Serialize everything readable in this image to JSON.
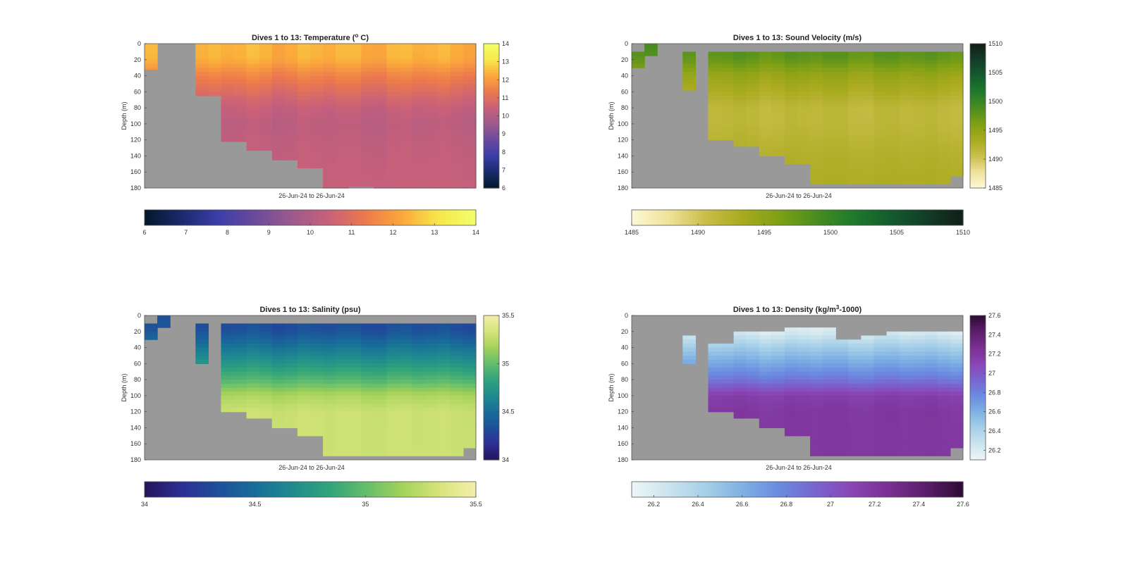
{
  "figure": {
    "background": "#ffffff",
    "nan_color": "#999999"
  },
  "chart_data": [
    {
      "type": "heatmap",
      "variable": "temperature",
      "title": "Dives 1 to 13: Temperature (",
      "title_sup": "o",
      "title_suffix": " C)",
      "xlabel": "26-Jun-24 to 26-Jun-24",
      "ylabel": "Depth (m)",
      "ylim": [
        0,
        180
      ],
      "yticks": [
        0,
        20,
        40,
        60,
        80,
        100,
        120,
        140,
        160,
        180
      ],
      "clim": [
        6,
        14
      ],
      "colorbar_ticks": [
        6,
        7,
        8,
        9,
        10,
        11,
        12,
        13,
        14
      ],
      "colorbar_tick_labels": [
        "6",
        "7",
        "8",
        "9",
        "10",
        "11",
        "12",
        "13",
        "14"
      ],
      "colormap": [
        "#03172b",
        "#1a2a6c",
        "#3b3ea8",
        "#6a4a9c",
        "#9b5a8c",
        "#c8607a",
        "#ec7a4c",
        "#fba83b",
        "#f7e84a",
        "#f2ff6a"
      ],
      "profiles": 26,
      "profile_depth_range": [
        [
          0,
          32
        ],
        [
          0,
          0
        ],
        [
          0,
          0
        ],
        [
          0,
          0
        ],
        [
          0,
          65
        ],
        [
          0,
          65
        ],
        [
          0,
          122
        ],
        [
          0,
          122
        ],
        [
          0,
          133
        ],
        [
          0,
          133
        ],
        [
          0,
          145
        ],
        [
          0,
          145
        ],
        [
          0,
          155
        ],
        [
          0,
          155
        ],
        [
          0,
          180
        ],
        [
          0,
          180
        ],
        [
          0,
          178
        ],
        [
          0,
          178
        ],
        [
          0,
          180
        ],
        [
          0,
          180
        ],
        [
          0,
          180
        ],
        [
          0,
          180
        ],
        [
          0,
          180
        ],
        [
          0,
          180
        ],
        [
          0,
          180
        ],
        [
          0,
          180
        ]
      ],
      "depth_profile": [
        [
          0,
          12.4
        ],
        [
          20,
          12.3
        ],
        [
          40,
          11.5
        ],
        [
          60,
          10.9
        ],
        [
          80,
          10.4
        ],
        [
          100,
          10.2
        ],
        [
          120,
          10.3
        ],
        [
          140,
          10.35
        ],
        [
          160,
          10.4
        ],
        [
          180,
          10.4
        ]
      ]
    },
    {
      "type": "heatmap",
      "variable": "sound_velocity",
      "title": "Dives 1 to 13: Sound Velocity (m/s)",
      "xlabel": "26-Jun-24 to 26-Jun-24",
      "ylabel": "Depth (m)",
      "ylim": [
        0,
        180
      ],
      "yticks": [
        0,
        20,
        40,
        60,
        80,
        100,
        120,
        140,
        160,
        180
      ],
      "clim": [
        1485,
        1510
      ],
      "colorbar_ticks": [
        1485,
        1490,
        1495,
        1500,
        1505,
        1510
      ],
      "colorbar_tick_labels": [
        "1485",
        "1490",
        "1495",
        "1500",
        "1505",
        "1510"
      ],
      "colormap": [
        "#fdf8d6",
        "#efe29a",
        "#c9be4a",
        "#a9aa1e",
        "#7fa015",
        "#4a8d1f",
        "#1f7a2c",
        "#145c2e",
        "#133d28",
        "#111e16"
      ],
      "profiles": 26,
      "profile_depth_range": [
        [
          10,
          30
        ],
        [
          0,
          15
        ],
        [
          0,
          0
        ],
        [
          0,
          0
        ],
        [
          10,
          58
        ],
        [
          0,
          0
        ],
        [
          10,
          120
        ],
        [
          10,
          120
        ],
        [
          10,
          128
        ],
        [
          10,
          128
        ],
        [
          10,
          140
        ],
        [
          10,
          140
        ],
        [
          10,
          150
        ],
        [
          10,
          150
        ],
        [
          10,
          175
        ],
        [
          10,
          175
        ],
        [
          10,
          175
        ],
        [
          10,
          175
        ],
        [
          10,
          175
        ],
        [
          10,
          175
        ],
        [
          10,
          175
        ],
        [
          10,
          175
        ],
        [
          10,
          175
        ],
        [
          10,
          175
        ],
        [
          10,
          175
        ],
        [
          10,
          165
        ]
      ],
      "depth_profile": [
        [
          0,
          1498.5
        ],
        [
          20,
          1497.5
        ],
        [
          40,
          1494.5
        ],
        [
          60,
          1493.0
        ],
        [
          80,
          1491.5
        ],
        [
          100,
          1491.5
        ],
        [
          120,
          1492.0
        ],
        [
          140,
          1492.5
        ],
        [
          160,
          1492.8
        ],
        [
          180,
          1493.0
        ]
      ]
    },
    {
      "type": "heatmap",
      "variable": "salinity",
      "title": "Dives 1 to 13: Salinity (psu)",
      "xlabel": "26-Jun-24 to 26-Jun-24",
      "ylabel": "Depth (m)",
      "ylim": [
        0,
        180
      ],
      "yticks": [
        0,
        20,
        40,
        60,
        80,
        100,
        120,
        140,
        160,
        180
      ],
      "clim": [
        34,
        35.5
      ],
      "colorbar_ticks": [
        34,
        34.5,
        35,
        35.5
      ],
      "colorbar_tick_labels": [
        "34",
        "34.5",
        "35",
        "35.5"
      ],
      "colormap": [
        "#24145c",
        "#2d2f94",
        "#1e4f9a",
        "#186d99",
        "#1f8a8e",
        "#31a37c",
        "#63bd6c",
        "#a4d25a",
        "#d6e47a",
        "#f5eeaa"
      ],
      "profiles": 26,
      "profile_depth_range": [
        [
          10,
          30
        ],
        [
          0,
          15
        ],
        [
          0,
          0
        ],
        [
          0,
          0
        ],
        [
          10,
          60
        ],
        [
          0,
          0
        ],
        [
          10,
          120
        ],
        [
          10,
          120
        ],
        [
          10,
          128
        ],
        [
          10,
          128
        ],
        [
          10,
          140
        ],
        [
          10,
          140
        ],
        [
          10,
          150
        ],
        [
          10,
          150
        ],
        [
          10,
          175
        ],
        [
          10,
          175
        ],
        [
          10,
          175
        ],
        [
          10,
          175
        ],
        [
          10,
          175
        ],
        [
          10,
          175
        ],
        [
          10,
          175
        ],
        [
          10,
          175
        ],
        [
          10,
          175
        ],
        [
          10,
          175
        ],
        [
          10,
          175
        ],
        [
          10,
          165
        ]
      ],
      "depth_profile": [
        [
          0,
          34.3
        ],
        [
          20,
          34.35
        ],
        [
          40,
          34.55
        ],
        [
          60,
          34.75
        ],
        [
          80,
          34.95
        ],
        [
          100,
          35.2
        ],
        [
          120,
          35.3
        ],
        [
          140,
          35.3
        ],
        [
          160,
          35.3
        ],
        [
          180,
          35.3
        ]
      ]
    },
    {
      "type": "heatmap",
      "variable": "density",
      "title": "Dives 1 to 13: Density (kg/m",
      "title_sup": "3",
      "title_suffix": "-1000)",
      "xlabel": "26-Jun-24 to 26-Jun-24",
      "ylabel": "Depth (m)",
      "ylim": [
        0,
        180
      ],
      "yticks": [
        0,
        20,
        40,
        60,
        80,
        100,
        120,
        140,
        160,
        180
      ],
      "clim": [
        26.1,
        27.6
      ],
      "colorbar_ticks": [
        26.2,
        26.4,
        26.6,
        26.8,
        27,
        27.2,
        27.4,
        27.6
      ],
      "colorbar_tick_labels": [
        "26.2",
        "26.4",
        "26.6",
        "26.8",
        "27",
        "27.2",
        "27.4",
        "27.6"
      ],
      "colormap": [
        "#eef6f7",
        "#cbe4ee",
        "#a6cfe8",
        "#7fb1e3",
        "#6a8be0",
        "#7a64d0",
        "#8a45b5",
        "#7a2f92",
        "#5a1f6a",
        "#2d0a33"
      ],
      "profiles": 26,
      "profile_depth_range": [
        [
          0,
          0
        ],
        [
          0,
          0
        ],
        [
          0,
          0
        ],
        [
          0,
          0
        ],
        [
          25,
          60
        ],
        [
          0,
          0
        ],
        [
          35,
          120
        ],
        [
          35,
          120
        ],
        [
          20,
          128
        ],
        [
          20,
          128
        ],
        [
          20,
          140
        ],
        [
          20,
          140
        ],
        [
          15,
          150
        ],
        [
          15,
          150
        ],
        [
          15,
          175
        ],
        [
          15,
          175
        ],
        [
          30,
          175
        ],
        [
          30,
          175
        ],
        [
          25,
          175
        ],
        [
          25,
          175
        ],
        [
          20,
          175
        ],
        [
          20,
          175
        ],
        [
          20,
          175
        ],
        [
          20,
          175
        ],
        [
          20,
          175
        ],
        [
          20,
          165
        ]
      ],
      "depth_profile": [
        [
          0,
          26.15
        ],
        [
          20,
          26.2
        ],
        [
          40,
          26.45
        ],
        [
          60,
          26.65
        ],
        [
          80,
          26.85
        ],
        [
          100,
          27.15
        ],
        [
          120,
          27.2
        ],
        [
          140,
          27.2
        ],
        [
          160,
          27.2
        ],
        [
          180,
          27.2
        ]
      ]
    }
  ]
}
